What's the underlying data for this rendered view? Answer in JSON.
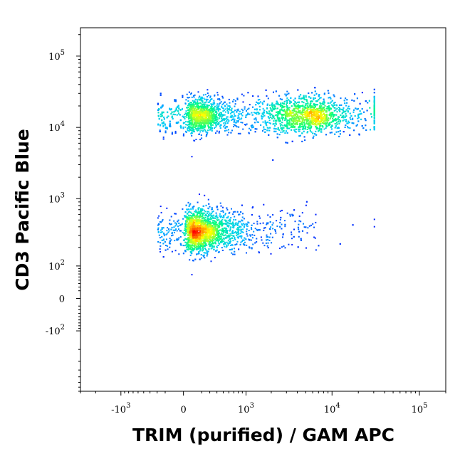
{
  "chart_data": {
    "type": "scatter",
    "subtype": "flow-cytometry density dot plot (biexponential axes)",
    "title": "",
    "xlabel": "TRIM (purified) / GAM APC",
    "ylabel": "CD3 Pacific Blue",
    "x_scale": "biexponential",
    "y_scale": "biexponential",
    "xlim": [
      -3000,
      200000
    ],
    "ylim": [
      -800,
      250000
    ],
    "x_ticks": [
      {
        "value": -1000,
        "base": "-10",
        "exp": "3"
      },
      {
        "value": 0,
        "base": "0",
        "exp": ""
      },
      {
        "value": 1000,
        "base": "10",
        "exp": "3"
      },
      {
        "value": 10000,
        "base": "10",
        "exp": "4"
      },
      {
        "value": 100000,
        "base": "10",
        "exp": "5"
      }
    ],
    "y_ticks": [
      {
        "value": -100,
        "base": "-10",
        "exp": "2"
      },
      {
        "value": 0,
        "base": "0",
        "exp": ""
      },
      {
        "value": 100,
        "base": "10",
        "exp": "2"
      },
      {
        "value": 1000,
        "base": "10",
        "exp": "3"
      },
      {
        "value": 10000,
        "base": "10",
        "exp": "4"
      },
      {
        "value": 100000,
        "base": "10",
        "exp": "5"
      }
    ],
    "density_colormap": [
      "#0000ff",
      "#00c8ff",
      "#00ff80",
      "#ffff00",
      "#ff0000"
    ],
    "populations": [
      {
        "x_center": 200,
        "x_spread_decades": 0.35,
        "x_range": [
          -300,
          30000
        ],
        "y_center": 350,
        "y_spread_decades": 0.15,
        "y_range": [
          70,
          1500
        ],
        "density_peak": "CD3 low cluster",
        "approx_events": 2600
      },
      {
        "x_center": 5000,
        "x_spread_decades": 0.25,
        "x_range": [
          -300,
          30000
        ],
        "y_center": 15000,
        "y_spread_decades": 0.13,
        "y_range": [
          3500,
          40000
        ],
        "density_peak": "CD3 high cluster",
        "approx_events": 3000
      },
      {
        "x_center": 200,
        "x_spread_decades": 0.3,
        "x_range": [
          -300,
          3000
        ],
        "y_center": 15000,
        "y_spread_decades": 0.12,
        "y_range": [
          3500,
          40000
        ],
        "density_peak": "CD3 high shoulder",
        "approx_events": 1400
      }
    ]
  }
}
